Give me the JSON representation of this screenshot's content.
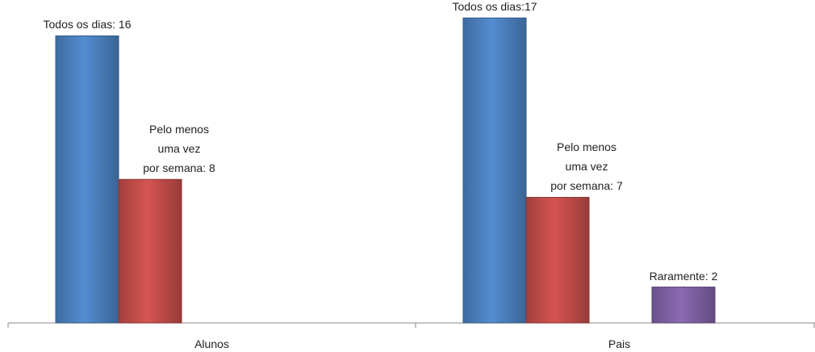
{
  "chart_data": {
    "type": "bar",
    "categories": [
      "Alunos",
      "Pais"
    ],
    "series": [
      {
        "color": "#4a7ebb",
        "values": [
          16,
          17
        ],
        "value_labels": [
          "Todos os dias: 16",
          "Todos os dias:17"
        ]
      },
      {
        "color": "#be4b48",
        "values": [
          8,
          7
        ],
        "value_labels": [
          "Pelo menos\numa vez\npor semana: 8",
          "Pelo menos\numa vez\npor semana: 7"
        ]
      },
      {
        "color": "#7d5fa0",
        "values": [
          null,
          2
        ],
        "value_labels": [
          null,
          "Raramente: 2"
        ]
      }
    ],
    "ylim": [
      0,
      18
    ]
  }
}
